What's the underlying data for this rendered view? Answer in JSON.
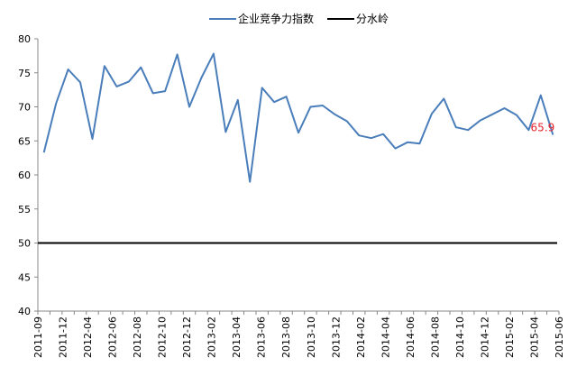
{
  "chart_data": {
    "type": "line",
    "title": "",
    "xlabel": "",
    "ylabel": "",
    "ylim": [
      40,
      80
    ],
    "yticks": [
      "40",
      "45",
      "50",
      "55",
      "60",
      "65",
      "70",
      "75",
      "80"
    ],
    "x_labels": [
      "2011-09",
      "2011-12",
      "2012-04",
      "2012-06",
      "2012-08",
      "2012-10",
      "2012-12",
      "2013-02",
      "2013-04",
      "2013-06",
      "2013-08",
      "2013-10",
      "2013-12",
      "2014-02",
      "2014-04",
      "2014-06",
      "2014-08",
      "2014-10",
      "2014-12",
      "2015-02",
      "2015-04",
      "2015-06"
    ],
    "legend_position": "top",
    "grid": false,
    "series": [
      {
        "name": "企业竞争力指数",
        "color": "#4a7ebb",
        "values": [
          63.3,
          70.5,
          75.5,
          73.6,
          65.3,
          76.0,
          73.0,
          73.7,
          75.8,
          72.0,
          72.3,
          77.7,
          70.0,
          74.3,
          77.8,
          66.3,
          71.0,
          59.0,
          72.8,
          70.7,
          71.5,
          66.2,
          70.0,
          70.2,
          68.9,
          67.9,
          65.8,
          65.4,
          66.0,
          63.9,
          64.8,
          64.6,
          69.0,
          71.2,
          67.0,
          66.6,
          68.0,
          68.9,
          69.8,
          68.8,
          66.6,
          71.7,
          65.9
        ]
      },
      {
        "name": "分水岭",
        "color": "#000000",
        "values": [
          50,
          50
        ]
      }
    ],
    "annotations": [
      {
        "text": "65.9",
        "color": "#e8202a",
        "index": 42,
        "value": 65.9
      }
    ]
  }
}
